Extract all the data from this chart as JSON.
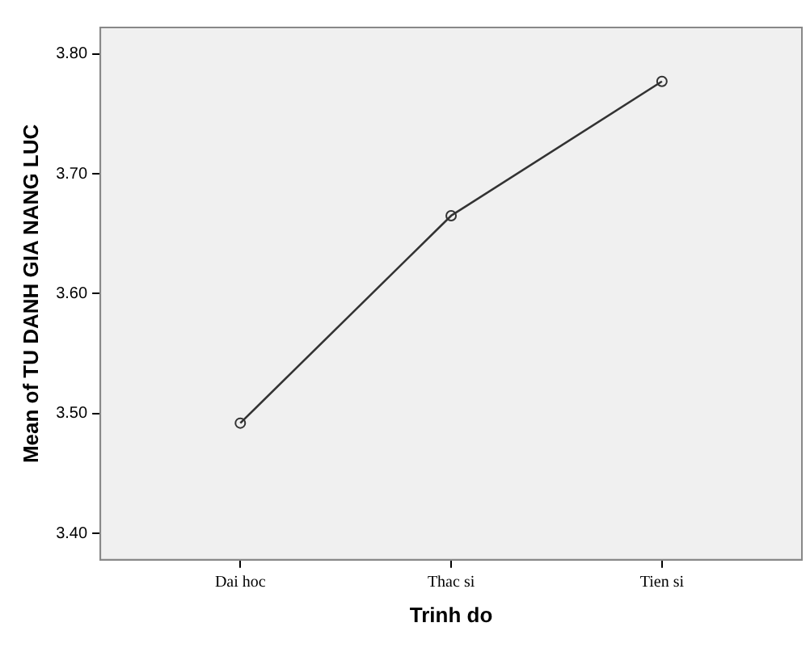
{
  "chart_data": {
    "type": "line",
    "xlabel": "Trinh do",
    "ylabel": "Mean of TU DANH GIA NANG LUC",
    "categories": [
      "Dai hoc",
      "Thac si",
      "Tien si"
    ],
    "series": [
      {
        "color": "#333333",
        "values": [
          3.492,
          3.665,
          3.777
        ]
      }
    ],
    "ylim": [
      3.378,
      3.822
    ],
    "yticks": [
      {
        "value": 3.4,
        "label": "3.40"
      },
      {
        "value": 3.5,
        "label": "3.50"
      },
      {
        "value": 3.6,
        "label": "3.60"
      },
      {
        "value": 3.7,
        "label": "3.70"
      },
      {
        "value": 3.8,
        "label": "3.80"
      }
    ],
    "grid": false,
    "legend": false,
    "marker": "circle",
    "line_style": "solid"
  }
}
